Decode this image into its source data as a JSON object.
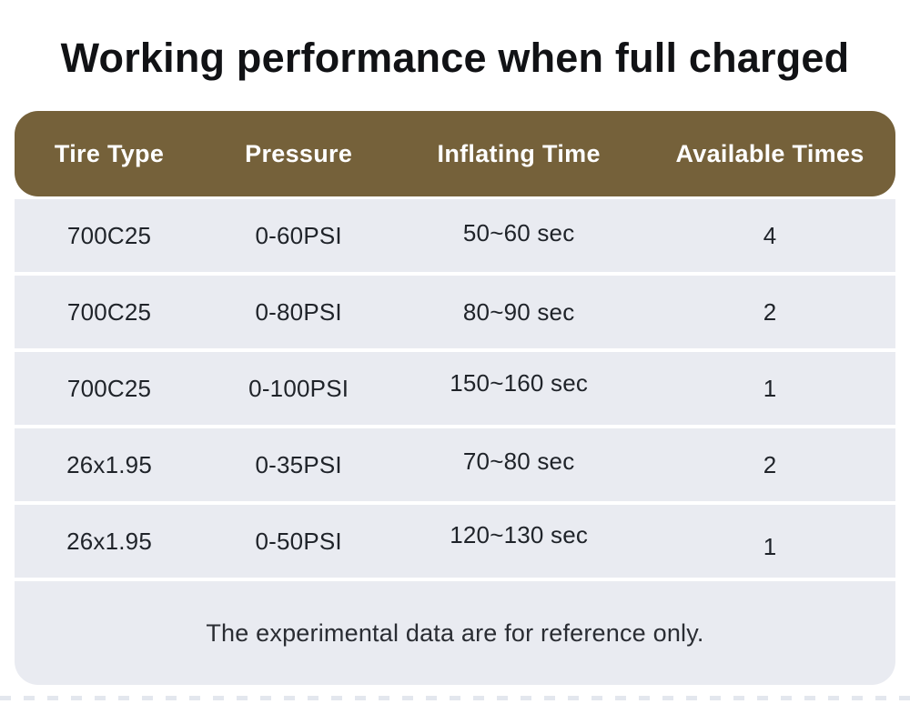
{
  "title": "Working performance when full charged",
  "table": {
    "header": {
      "columns": [
        "Tire Type",
        "Pressure",
        "Inflating Time",
        "Available Times"
      ]
    },
    "rows": [
      [
        "700C25",
        "0-60PSI",
        "50~60 sec",
        "4"
      ],
      [
        "700C25",
        "0-80PSI",
        "80~90 sec",
        "2"
      ],
      [
        "700C25",
        "0-100PSI",
        "150~160 sec",
        "1"
      ],
      [
        "26x1.95",
        "0-35PSI",
        "70~80 sec",
        "2"
      ],
      [
        "26x1.95",
        "0-50PSI",
        "120~130 sec",
        "1"
      ]
    ],
    "footnote": "The experimental data are for reference only."
  },
  "chart_data": {
    "type": "table",
    "title": "Working performance when full charged",
    "columns": [
      "Tire Type",
      "Pressure",
      "Inflating Time",
      "Available Times"
    ],
    "rows": [
      [
        "700C25",
        "0-60PSI",
        "50~60 sec",
        "4"
      ],
      [
        "700C25",
        "0-80PSI",
        "80~90 sec",
        "2"
      ],
      [
        "700C25",
        "0-100PSI",
        "150~160 sec",
        "1"
      ],
      [
        "26x1.95",
        "0-35PSI",
        "70~80 sec",
        "2"
      ],
      [
        "26x1.95",
        "0-50PSI",
        "120~130 sec",
        "1"
      ]
    ],
    "footnote": "The experimental data are for reference only.",
    "layout_hints": {
      "header_style": "rounded pill, brown background, white bold text",
      "row_style": "light gray bands separated by thin white gaps, centered text",
      "grid": "off"
    }
  },
  "colors": {
    "page_bg": "#FFFFFF",
    "header_bg": "#75613A",
    "header_text": "#FFFFFF",
    "row_bg": "#E9EBF1",
    "cell_text": "#1F2329",
    "title_text": "#111215",
    "footnote_text": "#2A2D33",
    "dashed_divider": "#E3E7EE"
  }
}
